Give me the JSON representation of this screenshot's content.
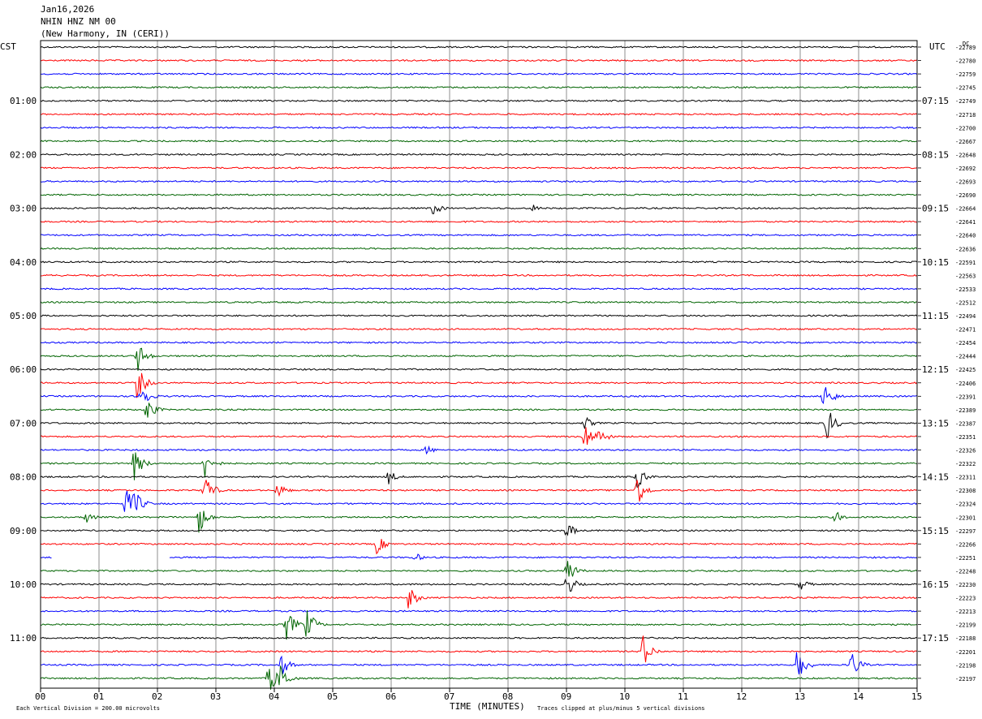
{
  "header": {
    "date": "Jan16,2026",
    "station": "NHIN HNZ NM 00",
    "location": "(New Harmony, IN (CERI))"
  },
  "chart_data": {
    "type": "seismogram",
    "left_axis_label": "CST",
    "right_axis_label": "UTC",
    "dc_label": "DC",
    "xlabel": "TIME (MINUTES)",
    "x_ticks": [
      "00",
      "01",
      "02",
      "03",
      "04",
      "05",
      "06",
      "07",
      "08",
      "09",
      "10",
      "11",
      "12",
      "13",
      "14",
      "15"
    ],
    "x_range": [
      0,
      15
    ],
    "trace_colors": [
      "#000000",
      "#ff0000",
      "#0000ff",
      "#006400"
    ],
    "left_time_labels": [
      "01:00",
      "02:00",
      "03:00",
      "04:00",
      "05:00",
      "06:00",
      "07:00",
      "08:00",
      "09:00",
      "10:00",
      "11:00"
    ],
    "right_time_labels": [
      "07:15",
      "08:15",
      "09:15",
      "10:15",
      "11:15",
      "12:15",
      "13:15",
      "14:15",
      "15:15",
      "16:15",
      "17:15"
    ],
    "dc_values": [
      "-22789",
      "-22780",
      "-22759",
      "-22745",
      "-22749",
      "-22718",
      "-22700",
      "-22667",
      "-22648",
      "-22692",
      "-22693",
      "-22690",
      "-22664",
      "-22641",
      "-22640",
      "-22636",
      "-22591",
      "-22563",
      "-22533",
      "-22512",
      "-22494",
      "-22471",
      "-22454",
      "-22444",
      "-22425",
      "-22406",
      "-22391",
      "-22389",
      "-22387",
      "-22351",
      "-22326",
      "-22322",
      "-22311",
      "-22308",
      "-22324",
      "-22301",
      "-22297",
      "-22266",
      "-22251",
      "-22248",
      "-22230",
      "-22223",
      "-22213",
      "-22199",
      "-22188",
      "-22201",
      "-22198",
      "-22197"
    ],
    "events": [
      {
        "row": 12,
        "minute": 6.7,
        "amp": 1.3
      },
      {
        "row": 12,
        "minute": 8.4,
        "amp": 0.7
      },
      {
        "row": 23,
        "minute": 1.65,
        "amp": 2.6
      },
      {
        "row": 25,
        "minute": 1.65,
        "amp": 2.8
      },
      {
        "row": 26,
        "minute": 1.7,
        "amp": 2.6
      },
      {
        "row": 27,
        "minute": 1.8,
        "amp": 2.2
      },
      {
        "row": 26,
        "minute": 13.4,
        "amp": 2.8
      },
      {
        "row": 28,
        "minute": 13.45,
        "amp": 2.8
      },
      {
        "row": 28,
        "minute": 9.3,
        "amp": 1.2
      },
      {
        "row": 29,
        "minute": 9.3,
        "amp": 2.6
      },
      {
        "row": 29,
        "minute": 9.55,
        "amp": 1.6
      },
      {
        "row": 30,
        "minute": 6.6,
        "amp": 0.8
      },
      {
        "row": 31,
        "minute": 1.6,
        "amp": 2.6
      },
      {
        "row": 31,
        "minute": 2.8,
        "amp": 2.6
      },
      {
        "row": 32,
        "minute": 5.95,
        "amp": 1.2
      },
      {
        "row": 32,
        "minute": 10.2,
        "amp": 2.0
      },
      {
        "row": 33,
        "minute": 10.2,
        "amp": 2.8
      },
      {
        "row": 33,
        "minute": 4.05,
        "amp": 1.4
      },
      {
        "row": 33,
        "minute": 2.8,
        "amp": 2.8
      },
      {
        "row": 34,
        "minute": 1.45,
        "amp": 2.6
      },
      {
        "row": 34,
        "minute": 1.6,
        "amp": 2.4
      },
      {
        "row": 35,
        "minute": 0.75,
        "amp": 1.2
      },
      {
        "row": 35,
        "minute": 2.7,
        "amp": 2.8
      },
      {
        "row": 35,
        "minute": 13.6,
        "amp": 1.0
      },
      {
        "row": 36,
        "minute": 9.0,
        "amp": 1.4
      },
      {
        "row": 37,
        "minute": 5.75,
        "amp": 1.6
      },
      {
        "row": 38,
        "minute": 6.4,
        "amp": 0.8
      },
      {
        "row": 39,
        "minute": 9.0,
        "amp": 2.4
      },
      {
        "row": 40,
        "minute": 9.0,
        "amp": 2.0
      },
      {
        "row": 40,
        "minute": 13.0,
        "amp": 1.0
      },
      {
        "row": 41,
        "minute": 6.3,
        "amp": 2.0
      },
      {
        "row": 43,
        "minute": 4.2,
        "amp": 2.6
      },
      {
        "row": 43,
        "minute": 4.55,
        "amp": 2.6
      },
      {
        "row": 45,
        "minute": 10.3,
        "amp": 2.8
      },
      {
        "row": 46,
        "minute": 12.95,
        "amp": 2.8
      },
      {
        "row": 46,
        "minute": 13.85,
        "amp": 2.8
      },
      {
        "row": 46,
        "minute": 4.1,
        "amp": 2.0
      },
      {
        "row": 47,
        "minute": 3.9,
        "amp": 2.8
      },
      {
        "row": 47,
        "minute": 4.1,
        "amp": 2.4
      }
    ],
    "gaps": [
      {
        "row": 38,
        "start_minute": 0.2,
        "end_minute": 2.2
      }
    ]
  },
  "footer": {
    "scale": "Each Vertical Division =  200.00 microvolts",
    "clip_note": "Traces clipped at plus/minus 5 vertical divisions"
  }
}
